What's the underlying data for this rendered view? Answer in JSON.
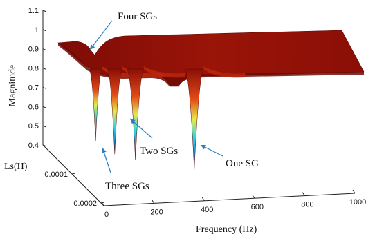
{
  "chart_data": {
    "type": "surface",
    "title": "",
    "xlabel": "Frequency  (Hz)",
    "ylabel": "Ls(H)",
    "zlabel": "Magnitude",
    "x_ticks": [
      "0",
      "200",
      "400",
      "600",
      "800",
      "1000"
    ],
    "y_ticks": [
      "0.0001",
      "0.0002"
    ],
    "z_ticks": [
      "0.4",
      "0.5",
      "0.6",
      "0.7",
      "0.8",
      "0.9",
      "1",
      "1.1"
    ],
    "xlim": [
      0,
      1000
    ],
    "zlim": [
      0.4,
      1.1
    ],
    "baseline_magnitude": 0.9,
    "colormap": [
      "#0b2a8c",
      "#1f8bd8",
      "#2fd3e0",
      "#e9e94a",
      "#e24a17",
      "#8b0e07"
    ],
    "resonance_dips": [
      {
        "frequency": 70,
        "min_magnitude": 0.53,
        "label": "Four SGs"
      },
      {
        "frequency": 130,
        "min_magnitude": 0.46,
        "label": "Three SGs"
      },
      {
        "frequency": 195,
        "min_magnitude": 0.43,
        "label": "Two SGs"
      },
      {
        "frequency": 380,
        "min_magnitude": 0.38,
        "label": "One SG"
      }
    ],
    "annotations": {
      "four": "Four SGs",
      "three": "Three SGs",
      "two": "Two SGs",
      "one": "One SG"
    }
  }
}
